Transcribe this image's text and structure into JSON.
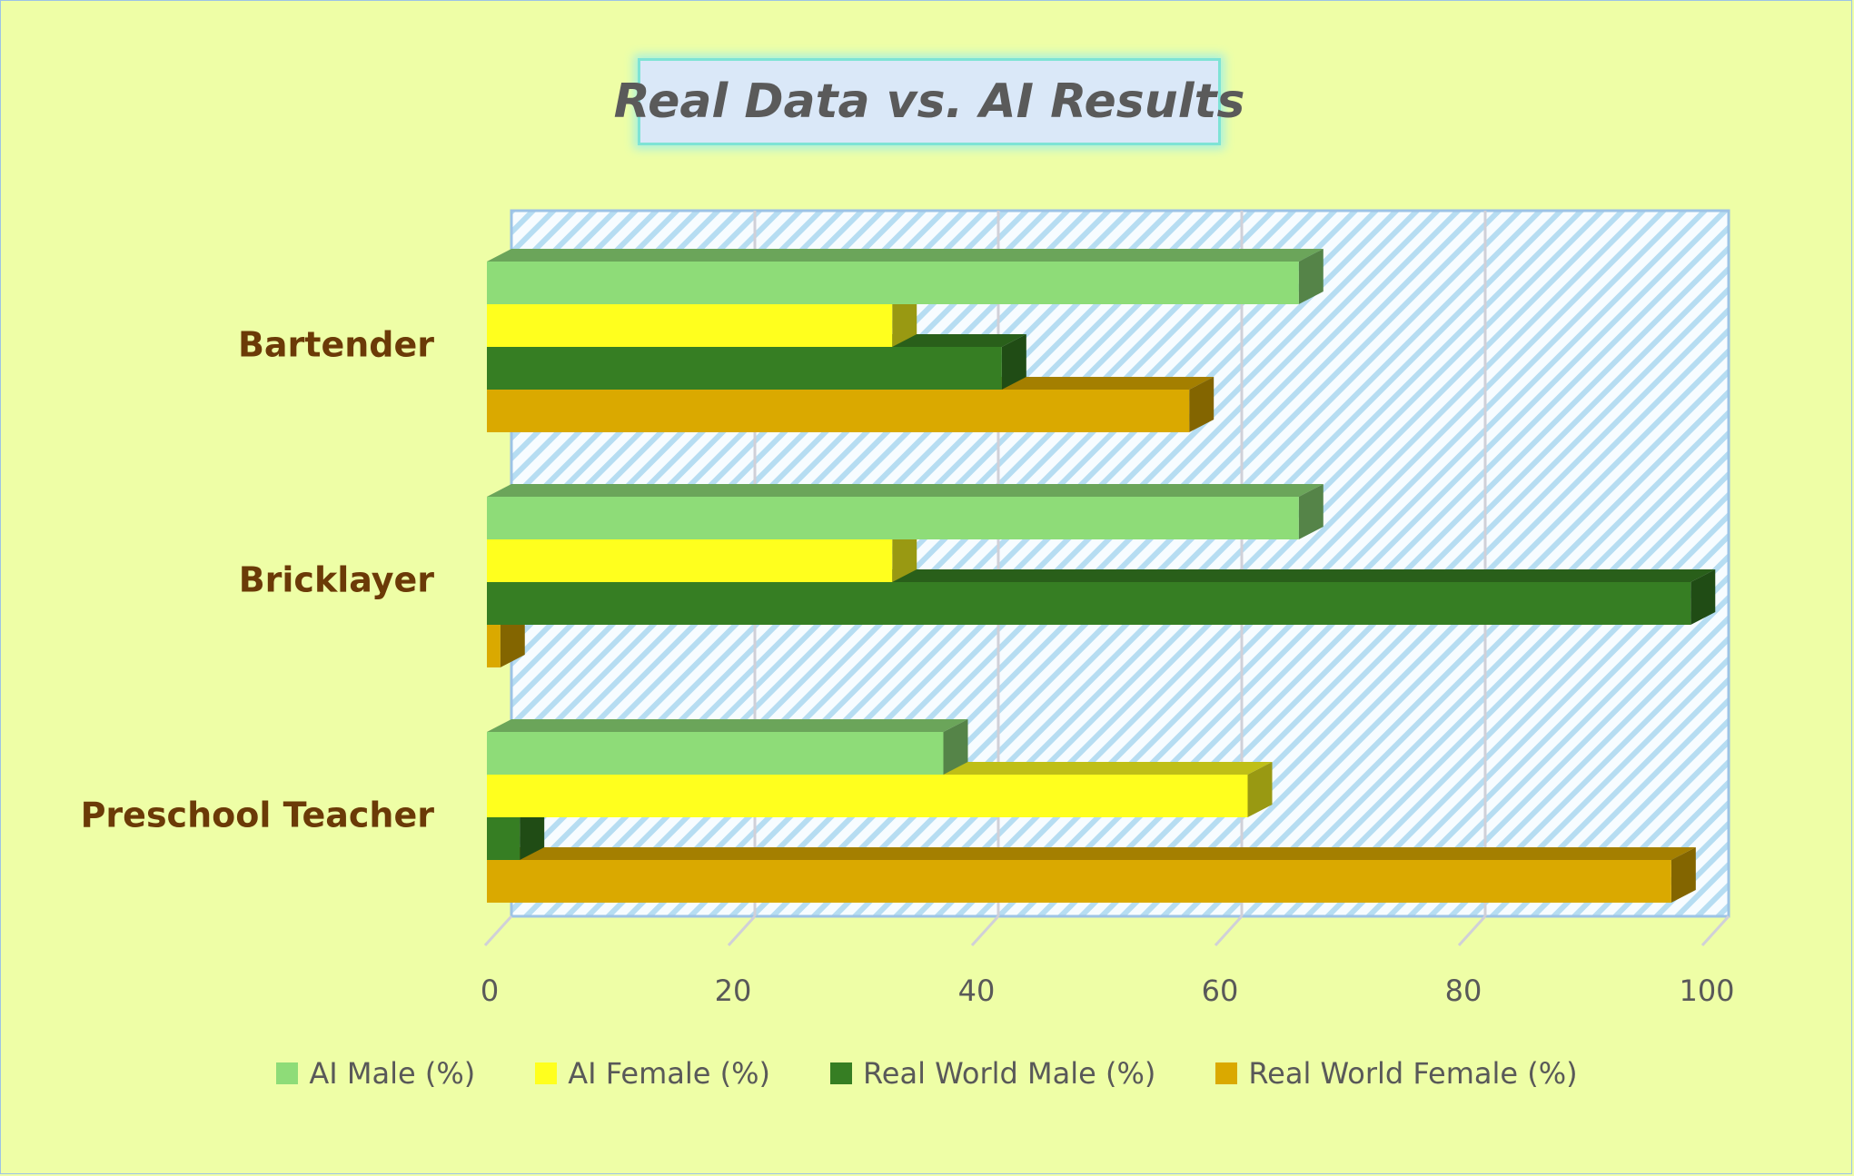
{
  "chart_data": {
    "type": "bar",
    "orientation": "horizontal",
    "style": "3d-clustered",
    "title": "Real Data vs. AI Results",
    "categories": [
      "Preschool Teacher",
      "Bricklayer",
      "Bartender"
    ],
    "series": [
      {
        "name": "AI Male (%)",
        "values": [
          37.5,
          66.7,
          66.7
        ],
        "color": "#8EDC78"
      },
      {
        "name": "AI Female (%)",
        "values": [
          62.5,
          33.3,
          33.3
        ],
        "color": "#FFFF1E"
      },
      {
        "name": "Real World Male (%)",
        "values": [
          2.7,
          98.9,
          42.3
        ],
        "color": "#367E23"
      },
      {
        "name": "Real World Female (%)",
        "values": [
          97.3,
          1.1,
          57.7
        ],
        "color": "#DAA900"
      }
    ],
    "xlim": [
      0,
      100
    ],
    "xticks": [
      "0",
      "20",
      "40",
      "60",
      "80",
      "100"
    ],
    "grid": true,
    "legend_position": "bottom",
    "plot_background": "diagonal-hatch light blue"
  }
}
